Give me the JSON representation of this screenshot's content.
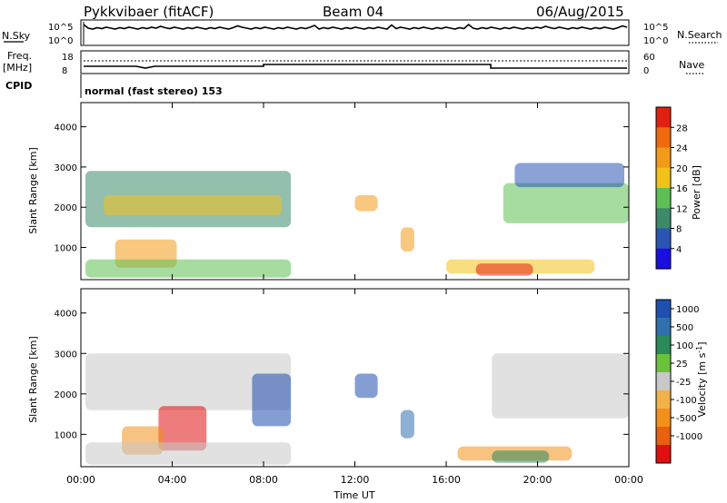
{
  "header": {
    "station": "Pykkvibaer (fitACF)",
    "beam": "Beam 04",
    "date": "06/Aug/2015"
  },
  "top_panels": {
    "nsky_label": "N.Sky",
    "nsky_ticks": [
      "10^5",
      "10^0"
    ],
    "nsearch_label": "N.Search",
    "nsearch_ticks": [
      "10^5",
      "10^0"
    ],
    "freq_label_1": "Freq.",
    "freq_label_2": "[MHz]",
    "freq_ticks": [
      "18",
      "8"
    ],
    "nave_label": "Nave",
    "nave_ticks": [
      "60",
      "0"
    ],
    "cpid_label": "CPID",
    "cpid_text": "normal (fast stereo) 153"
  },
  "colors": {
    "power_scale": [
      "#1a0fe0",
      "#2a55b5",
      "#3c8a6a",
      "#5ec054",
      "#f2c11a",
      "#f29a1a",
      "#f06a10",
      "#e02010"
    ],
    "velocity_scale": [
      "#1f4fb0",
      "#3070b0",
      "#2a8a5a",
      "#6ac23a",
      "#c8c8c8",
      "#f2b24a",
      "#f2901a",
      "#e86010",
      "#e01010"
    ]
  },
  "chart_data": [
    {
      "type": "heatmap",
      "title": "Power",
      "xlabel": "",
      "ylabel": "Slant Range [km]",
      "x_ticks": [
        "00:00",
        "04:00",
        "08:00",
        "12:00",
        "16:00",
        "20:00",
        "00:00"
      ],
      "y_ticks": [
        "1000",
        "2000",
        "3000",
        "4000"
      ],
      "ylim": [
        200,
        4600
      ],
      "xlim_hours": [
        0,
        24
      ],
      "colorbar_label": "Power [dB]",
      "colorbar_ticks": [
        "4",
        "8",
        "12",
        "16",
        "20",
        "24",
        "28"
      ],
      "colorbar_range": [
        0,
        32
      ],
      "bands": [
        {
          "t0": 0.2,
          "t1": 9.2,
          "r0": 1500,
          "r1": 2900,
          "value": 10
        },
        {
          "t0": 1.0,
          "t1": 8.8,
          "r0": 1800,
          "r1": 2300,
          "value": 16
        },
        {
          "t0": 1.5,
          "t1": 4.2,
          "r0": 500,
          "r1": 1200,
          "value": 22
        },
        {
          "t0": 0.2,
          "t1": 9.2,
          "r0": 250,
          "r1": 700,
          "value": 14
        },
        {
          "t0": 12.0,
          "t1": 13.0,
          "r0": 1900,
          "r1": 2300,
          "value": 20
        },
        {
          "t0": 14.0,
          "t1": 14.6,
          "r0": 900,
          "r1": 1500,
          "value": 22
        },
        {
          "t0": 16.0,
          "t1": 22.5,
          "r0": 350,
          "r1": 700,
          "value": 18
        },
        {
          "t0": 17.3,
          "t1": 19.8,
          "r0": 300,
          "r1": 600,
          "value": 30
        },
        {
          "t0": 18.5,
          "t1": 24.0,
          "r0": 1600,
          "r1": 2600,
          "value": 14
        },
        {
          "t0": 19.0,
          "t1": 23.8,
          "r0": 2500,
          "r1": 3100,
          "value": 6
        }
      ]
    },
    {
      "type": "heatmap",
      "title": "Velocity",
      "xlabel": "Time UT",
      "ylabel": "Slant Range [km]",
      "x_ticks": [
        "00:00",
        "04:00",
        "08:00",
        "12:00",
        "16:00",
        "20:00",
        "00:00"
      ],
      "y_ticks": [
        "1000",
        "2000",
        "3000",
        "4000"
      ],
      "ylim": [
        200,
        4600
      ],
      "xlim_hours": [
        0,
        24
      ],
      "colorbar_label": "Velocity [m s^-1]",
      "colorbar_ticks": [
        "1000",
        "500",
        "100",
        "25",
        "-25",
        "-100",
        "-500",
        "-1000"
      ],
      "bands": [
        {
          "t0": 0.2,
          "t1": 9.2,
          "r0": 1600,
          "r1": 3000,
          "value": 0
        },
        {
          "t0": 7.5,
          "t1": 9.2,
          "r0": 1200,
          "r1": 2500,
          "value": 600
        },
        {
          "t0": 3.4,
          "t1": 5.5,
          "r0": 600,
          "r1": 1700,
          "value": -500
        },
        {
          "t0": 1.8,
          "t1": 3.6,
          "r0": 500,
          "r1": 1200,
          "value": -150
        },
        {
          "t0": 0.2,
          "t1": 9.2,
          "r0": 250,
          "r1": 800,
          "value": 0
        },
        {
          "t0": 12.0,
          "t1": 13.0,
          "r0": 1900,
          "r1": 2500,
          "value": 700
        },
        {
          "t0": 14.0,
          "t1": 14.6,
          "r0": 900,
          "r1": 1600,
          "value": 300
        },
        {
          "t0": 16.5,
          "t1": 21.5,
          "r0": 350,
          "r1": 700,
          "value": -200
        },
        {
          "t0": 18.0,
          "t1": 20.5,
          "r0": 300,
          "r1": 600,
          "value": 50
        },
        {
          "t0": 18.0,
          "t1": 24.0,
          "r0": 1400,
          "r1": 3000,
          "value": 0
        }
      ]
    }
  ]
}
